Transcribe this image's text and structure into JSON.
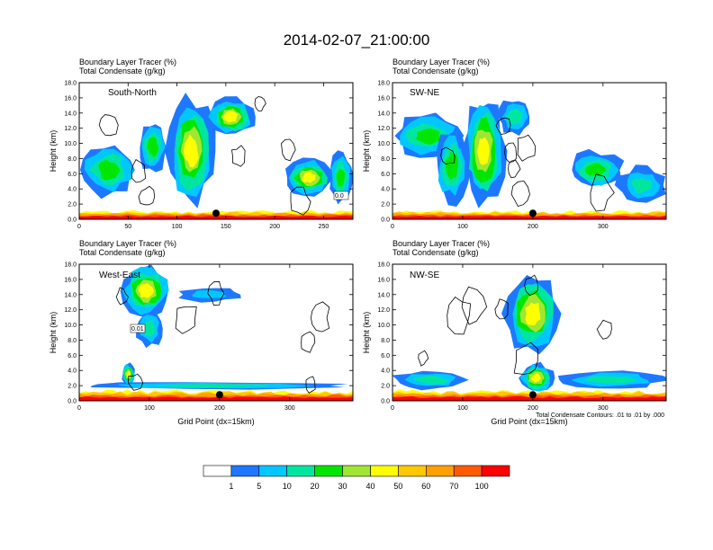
{
  "figure": {
    "title": "2014-02-07_21:00:00",
    "contour_note": "Total Condensate Contours: .01 to .01 by .000",
    "colorbar": {
      "colors": [
        "#ffffff",
        "#1e78ff",
        "#00c8ff",
        "#00e6a0",
        "#00e600",
        "#a0e632",
        "#ffff00",
        "#ffc800",
        "#ffa000",
        "#ff5a00",
        "#ff0000"
      ],
      "labels": [
        "1",
        "5",
        "10",
        "20",
        "30",
        "40",
        "50",
        "60",
        "70",
        "100"
      ]
    }
  },
  "chart_data": [
    {
      "type": "heatmap",
      "subtitle": [
        "Boundary Layer Tracer   (%)",
        "Total Condensate   (g/kg)"
      ],
      "region_label": "South-North",
      "ylabel": "Height (km)",
      "xlabel": "",
      "xlim": [
        0,
        280
      ],
      "ylim": [
        0,
        18
      ],
      "xticks": [
        "0",
        "50",
        "100",
        "150",
        "200",
        "250"
      ],
      "yticks": [
        "0.0",
        "2.0",
        "4.0",
        "6.0",
        "8.0",
        "10.0",
        "12.0",
        "14.0",
        "16.0",
        "18.0"
      ],
      "marker_x": 140,
      "contour_label": "0.0",
      "tracer_features": [
        {
          "x": [
            0,
            280
          ],
          "y": [
            0,
            1.2
          ],
          "level": "70-100"
        },
        {
          "x": [
            0,
            60
          ],
          "y": [
            3,
            10
          ],
          "level": "5-30"
        },
        {
          "x": [
            60,
            90
          ],
          "y": [
            6,
            13
          ],
          "level": "5-30"
        },
        {
          "x": [
            90,
            140
          ],
          "y": [
            2,
            16
          ],
          "level": "5-40"
        },
        {
          "x": [
            130,
            180
          ],
          "y": [
            11,
            16
          ],
          "level": "5-40"
        },
        {
          "x": [
            210,
            260
          ],
          "y": [
            3,
            8
          ],
          "level": "5-40"
        },
        {
          "x": [
            255,
            280
          ],
          "y": [
            2,
            9
          ],
          "level": "5-30"
        }
      ]
    },
    {
      "type": "heatmap",
      "subtitle": [
        "Boundary Layer Tracer   (%)",
        "Total Condensate   (g/kg)"
      ],
      "region_label": "SW-NE",
      "ylabel": "Height (km)",
      "xlabel": "",
      "xlim": [
        0,
        390
      ],
      "ylim": [
        0,
        18
      ],
      "xticks": [
        "0",
        "100",
        "200",
        "300"
      ],
      "yticks": [
        "0.0",
        "2.0",
        "4.0",
        "6.0",
        "8.0",
        "10.0",
        "12.0",
        "14.0",
        "16.0",
        "18.0"
      ],
      "marker_x": 200,
      "tracer_features": [
        {
          "x": [
            0,
            390
          ],
          "y": [
            0,
            1.2
          ],
          "level": "70-100"
        },
        {
          "x": [
            0,
            100
          ],
          "y": [
            8,
            14
          ],
          "level": "5-30"
        },
        {
          "x": [
            60,
            110
          ],
          "y": [
            2,
            12
          ],
          "level": "5-30"
        },
        {
          "x": [
            100,
            160
          ],
          "y": [
            2,
            16
          ],
          "level": "5-40"
        },
        {
          "x": [
            150,
            200
          ],
          "y": [
            11,
            16
          ],
          "level": "5-20"
        },
        {
          "x": [
            250,
            330
          ],
          "y": [
            4,
            9
          ],
          "level": "5-30"
        },
        {
          "x": [
            320,
            390
          ],
          "y": [
            2,
            7
          ],
          "level": "5-20"
        }
      ]
    },
    {
      "type": "heatmap",
      "subtitle": [
        "Boundary Layer Tracer   (%)",
        "Total Condensate   (g/kg)"
      ],
      "region_label": "West-East",
      "ylabel": "Height (km)",
      "xlabel": "Grid Point (dx=15km)",
      "xlim": [
        0,
        390
      ],
      "ylim": [
        0,
        18
      ],
      "xticks": [
        "0",
        "100",
        "200",
        "300"
      ],
      "yticks": [
        "0.0",
        "2.0",
        "4.0",
        "6.0",
        "8.0",
        "10.0",
        "12.0",
        "14.0",
        "16.0",
        "18.0"
      ],
      "marker_x": 200,
      "contour_label": "0.01",
      "tracer_features": [
        {
          "x": [
            0,
            390
          ],
          "y": [
            0,
            1.5
          ],
          "level": "70-100"
        },
        {
          "x": [
            0,
            390
          ],
          "y": [
            1.5,
            2.5
          ],
          "level": "5-20"
        },
        {
          "x": [
            60,
            80
          ],
          "y": [
            2,
            5
          ],
          "level": "5-40"
        },
        {
          "x": [
            60,
            130
          ],
          "y": [
            11,
            18
          ],
          "level": "5-40"
        },
        {
          "x": [
            80,
            120
          ],
          "y": [
            7,
            12
          ],
          "level": "5-20"
        },
        {
          "x": [
            140,
            230
          ],
          "y": [
            13,
            15
          ],
          "level": "1-10"
        }
      ]
    },
    {
      "type": "heatmap",
      "subtitle": [
        "Boundary Layer Tracer   (%)",
        "Total Condensate   (g/kg)"
      ],
      "region_label": "NW-SE",
      "ylabel": "Height (km)",
      "xlabel": "Grid Point (dx=15km)",
      "xlim": [
        0,
        390
      ],
      "ylim": [
        0,
        18
      ],
      "xticks": [
        "0",
        "100",
        "200",
        "300"
      ],
      "yticks": [
        "0.0",
        "2.0",
        "4.0",
        "6.0",
        "8.0",
        "10.0",
        "12.0",
        "14.0",
        "16.0",
        "18.0"
      ],
      "marker_x": 200,
      "tracer_features": [
        {
          "x": [
            0,
            390
          ],
          "y": [
            0,
            1.5
          ],
          "level": "70-100"
        },
        {
          "x": [
            0,
            110
          ],
          "y": [
            1.5,
            4
          ],
          "level": "5-20"
        },
        {
          "x": [
            160,
            240
          ],
          "y": [
            6,
            17
          ],
          "level": "5-40"
        },
        {
          "x": [
            180,
            230
          ],
          "y": [
            1,
            5
          ],
          "level": "5-40"
        },
        {
          "x": [
            230,
            390
          ],
          "y": [
            1.5,
            4
          ],
          "level": "5-20"
        }
      ]
    }
  ]
}
